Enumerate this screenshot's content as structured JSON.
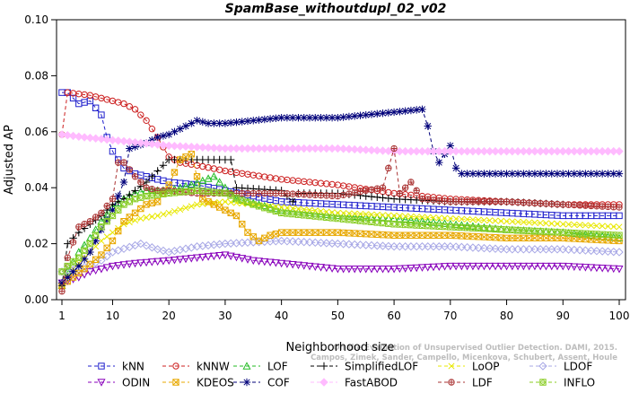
{
  "chart_data": {
    "type": "line",
    "title": "SpamBase_withoutdupl_02_v02",
    "xlabel": "Neighborhood size",
    "ylabel": "Adjusted AP",
    "xlim": [
      1,
      100
    ],
    "ylim": [
      0.0,
      0.1
    ],
    "x_ticks": [
      1,
      10,
      20,
      30,
      40,
      50,
      60,
      70,
      80,
      90,
      100
    ],
    "y_ticks": [
      0.0,
      0.02,
      0.04,
      0.06,
      0.08,
      0.1
    ],
    "y_tick_labels": [
      "0.00",
      "0.02",
      "0.04",
      "0.06",
      "0.08",
      "0.10"
    ],
    "grid": false,
    "legend_position": "bottom",
    "watermark": "Campos, Zimek, Sander, Campello, Micenkova, Schubert, Assent, Houle | On the Evaluation of Unsupervised Outlier Detection. DAMI, 2015.",
    "series": [
      {
        "name": "kNN",
        "color": "#1f1fcc",
        "marker": "square",
        "max_k": 100,
        "points": [
          [
            1,
            0.074
          ],
          [
            2,
            0.074
          ],
          [
            4,
            0.07
          ],
          [
            6,
            0.071
          ],
          [
            8,
            0.066
          ],
          [
            9,
            0.058
          ],
          [
            10,
            0.053
          ],
          [
            12,
            0.047
          ],
          [
            14,
            0.045
          ],
          [
            16,
            0.044
          ],
          [
            20,
            0.042
          ],
          [
            25,
            0.041
          ],
          [
            30,
            0.039
          ],
          [
            35,
            0.037
          ],
          [
            40,
            0.035
          ],
          [
            50,
            0.034
          ],
          [
            60,
            0.033
          ],
          [
            70,
            0.032
          ],
          [
            80,
            0.031
          ],
          [
            90,
            0.03
          ],
          [
            100,
            0.03
          ]
        ]
      },
      {
        "name": "kNNW",
        "color": "#cc1f1f",
        "marker": "circle",
        "max_k": 100,
        "points": [
          [
            1,
            0.059
          ],
          [
            2,
            0.074
          ],
          [
            4,
            0.0735
          ],
          [
            6,
            0.073
          ],
          [
            8,
            0.072
          ],
          [
            10,
            0.071
          ],
          [
            12,
            0.07
          ],
          [
            14,
            0.068
          ],
          [
            16,
            0.064
          ],
          [
            18,
            0.058
          ],
          [
            20,
            0.051
          ],
          [
            22,
            0.049
          ],
          [
            25,
            0.048
          ],
          [
            30,
            0.046
          ],
          [
            40,
            0.043
          ],
          [
            50,
            0.041
          ],
          [
            60,
            0.038
          ],
          [
            70,
            0.036
          ],
          [
            80,
            0.035
          ],
          [
            90,
            0.034
          ],
          [
            100,
            0.034
          ]
        ]
      },
      {
        "name": "LOF",
        "color": "#22bb22",
        "marker": "triangle-up",
        "max_k": 100,
        "points": [
          [
            1,
            0.005
          ],
          [
            2,
            0.01
          ],
          [
            4,
            0.017
          ],
          [
            6,
            0.022
          ],
          [
            8,
            0.028
          ],
          [
            10,
            0.033
          ],
          [
            12,
            0.036
          ],
          [
            14,
            0.038
          ],
          [
            16,
            0.039
          ],
          [
            20,
            0.039
          ],
          [
            24,
            0.041
          ],
          [
            28,
            0.044
          ],
          [
            30,
            0.04
          ],
          [
            32,
            0.036
          ],
          [
            36,
            0.034
          ],
          [
            40,
            0.032
          ],
          [
            50,
            0.03
          ],
          [
            60,
            0.029
          ],
          [
            70,
            0.027
          ],
          [
            80,
            0.025
          ],
          [
            90,
            0.024
          ],
          [
            100,
            0.022
          ]
        ]
      },
      {
        "name": "SimplifiedLOF",
        "color": "#000000",
        "marker": "plus",
        "max_k": 90,
        "points": [
          [
            1,
            0.005
          ],
          [
            2,
            0.02
          ],
          [
            4,
            0.024
          ],
          [
            6,
            0.027
          ],
          [
            8,
            0.03
          ],
          [
            10,
            0.034
          ],
          [
            12,
            0.036
          ],
          [
            14,
            0.039
          ],
          [
            16,
            0.042
          ],
          [
            18,
            0.046
          ],
          [
            20,
            0.05
          ],
          [
            25,
            0.05
          ],
          [
            31,
            0.05
          ],
          [
            32,
            0.04
          ],
          [
            40,
            0.039
          ],
          [
            42,
            0.035
          ],
          [
            43,
            0.038
          ],
          [
            50,
            0.038
          ],
          [
            60,
            0.036
          ],
          [
            70,
            0.035
          ],
          [
            80,
            0.035
          ],
          [
            90,
            0.034
          ]
        ]
      },
      {
        "name": "LoOP",
        "color": "#e8e800",
        "marker": "x",
        "max_k": 100,
        "points": [
          [
            1,
            0.006
          ],
          [
            2,
            0.009
          ],
          [
            4,
            0.013
          ],
          [
            6,
            0.017
          ],
          [
            8,
            0.021
          ],
          [
            10,
            0.024
          ],
          [
            12,
            0.027
          ],
          [
            15,
            0.029
          ],
          [
            18,
            0.03
          ],
          [
            20,
            0.031
          ],
          [
            25,
            0.034
          ],
          [
            30,
            0.035
          ],
          [
            35,
            0.034
          ],
          [
            40,
            0.033
          ],
          [
            50,
            0.031
          ],
          [
            60,
            0.03
          ],
          [
            70,
            0.029
          ],
          [
            80,
            0.028
          ],
          [
            90,
            0.027
          ],
          [
            100,
            0.026
          ]
        ]
      },
      {
        "name": "LDOF",
        "color": "#a8a8e6",
        "marker": "diamond",
        "max_k": 100,
        "points": [
          [
            1,
            0.01
          ],
          [
            4,
            0.011
          ],
          [
            8,
            0.014
          ],
          [
            10,
            0.017
          ],
          [
            15,
            0.02
          ],
          [
            18,
            0.018
          ],
          [
            20,
            0.017
          ],
          [
            25,
            0.019
          ],
          [
            30,
            0.02
          ],
          [
            40,
            0.021
          ],
          [
            50,
            0.02
          ],
          [
            60,
            0.019
          ],
          [
            70,
            0.019
          ],
          [
            80,
            0.018
          ],
          [
            90,
            0.018
          ],
          [
            100,
            0.017
          ]
        ]
      },
      {
        "name": "ODIN",
        "color": "#8800bb",
        "marker": "triangle-down",
        "max_k": 100,
        "points": [
          [
            1,
            0.006
          ],
          [
            4,
            0.008
          ],
          [
            6,
            0.01
          ],
          [
            10,
            0.012
          ],
          [
            14,
            0.013
          ],
          [
            20,
            0.014
          ],
          [
            25,
            0.015
          ],
          [
            30,
            0.016
          ],
          [
            35,
            0.014
          ],
          [
            40,
            0.013
          ],
          [
            50,
            0.011
          ],
          [
            60,
            0.011
          ],
          [
            70,
            0.012
          ],
          [
            80,
            0.012
          ],
          [
            90,
            0.012
          ],
          [
            100,
            0.011
          ]
        ]
      },
      {
        "name": "KDEOS",
        "color": "#e8a800",
        "marker": "square-x",
        "max_k": 100,
        "points": [
          [
            1,
            0.005
          ],
          [
            3,
            0.008
          ],
          [
            5,
            0.011
          ],
          [
            8,
            0.016
          ],
          [
            10,
            0.021
          ],
          [
            12,
            0.028
          ],
          [
            14,
            0.031
          ],
          [
            16,
            0.034
          ],
          [
            18,
            0.035
          ],
          [
            20,
            0.041
          ],
          [
            22,
            0.05
          ],
          [
            24,
            0.052
          ],
          [
            26,
            0.036
          ],
          [
            28,
            0.034
          ],
          [
            30,
            0.032
          ],
          [
            32,
            0.03
          ],
          [
            34,
            0.024
          ],
          [
            36,
            0.021
          ],
          [
            38,
            0.023
          ],
          [
            40,
            0.024
          ],
          [
            50,
            0.024
          ],
          [
            60,
            0.023
          ],
          [
            70,
            0.023
          ],
          [
            80,
            0.022
          ],
          [
            90,
            0.022
          ],
          [
            100,
            0.021
          ]
        ]
      },
      {
        "name": "COF",
        "color": "#00007a",
        "marker": "asterisk",
        "max_k": 100,
        "points": [
          [
            1,
            0.006
          ],
          [
            2,
            0.008
          ],
          [
            4,
            0.012
          ],
          [
            6,
            0.017
          ],
          [
            8,
            0.025
          ],
          [
            10,
            0.032
          ],
          [
            12,
            0.042
          ],
          [
            13,
            0.054
          ],
          [
            16,
            0.056
          ],
          [
            18,
            0.058
          ],
          [
            20,
            0.059
          ],
          [
            22,
            0.061
          ],
          [
            25,
            0.064
          ],
          [
            27,
            0.063
          ],
          [
            30,
            0.063
          ],
          [
            35,
            0.064
          ],
          [
            40,
            0.065
          ],
          [
            45,
            0.065
          ],
          [
            50,
            0.065
          ],
          [
            55,
            0.066
          ],
          [
            60,
            0.067
          ],
          [
            65,
            0.068
          ],
          [
            66,
            0.062
          ],
          [
            67,
            0.053
          ],
          [
            68,
            0.049
          ],
          [
            69,
            0.052
          ],
          [
            70,
            0.055
          ],
          [
            71,
            0.047
          ],
          [
            72,
            0.045
          ],
          [
            80,
            0.045
          ],
          [
            90,
            0.045
          ],
          [
            100,
            0.045
          ]
        ]
      },
      {
        "name": "FastABOD",
        "color": "#ffbbff",
        "marker": "diamond-filled",
        "max_k": 100,
        "points": [
          [
            1,
            0.059
          ],
          [
            5,
            0.058
          ],
          [
            10,
            0.057
          ],
          [
            15,
            0.056
          ],
          [
            20,
            0.055
          ],
          [
            30,
            0.054
          ],
          [
            40,
            0.054
          ],
          [
            50,
            0.054
          ],
          [
            60,
            0.053
          ],
          [
            70,
            0.053
          ],
          [
            80,
            0.053
          ],
          [
            90,
            0.053
          ],
          [
            100,
            0.053
          ]
        ]
      },
      {
        "name": "LDF",
        "color": "#aa3333",
        "marker": "circle-plus",
        "max_k": 100,
        "points": [
          [
            1,
            0.003
          ],
          [
            2,
            0.015
          ],
          [
            4,
            0.026
          ],
          [
            6,
            0.028
          ],
          [
            8,
            0.031
          ],
          [
            10,
            0.036
          ],
          [
            11,
            0.049
          ],
          [
            12,
            0.049
          ],
          [
            14,
            0.044
          ],
          [
            16,
            0.04
          ],
          [
            18,
            0.039
          ],
          [
            20,
            0.039
          ],
          [
            25,
            0.038
          ],
          [
            30,
            0.038
          ],
          [
            40,
            0.038
          ],
          [
            50,
            0.037
          ],
          [
            55,
            0.039
          ],
          [
            58,
            0.04
          ],
          [
            60,
            0.054
          ],
          [
            61,
            0.038
          ],
          [
            63,
            0.042
          ],
          [
            65,
            0.036
          ],
          [
            70,
            0.035
          ],
          [
            80,
            0.035
          ],
          [
            90,
            0.034
          ],
          [
            100,
            0.033
          ]
        ]
      },
      {
        "name": "INFLO",
        "color": "#88cc22",
        "marker": "square-circle",
        "max_k": 100,
        "points": [
          [
            1,
            0.01
          ],
          [
            2,
            0.012
          ],
          [
            4,
            0.015
          ],
          [
            6,
            0.02
          ],
          [
            8,
            0.026
          ],
          [
            10,
            0.03
          ],
          [
            12,
            0.034
          ],
          [
            14,
            0.036
          ],
          [
            16,
            0.037
          ],
          [
            20,
            0.038
          ],
          [
            25,
            0.039
          ],
          [
            30,
            0.038
          ],
          [
            35,
            0.034
          ],
          [
            40,
            0.031
          ],
          [
            50,
            0.029
          ],
          [
            60,
            0.027
          ],
          [
            70,
            0.026
          ],
          [
            80,
            0.025
          ],
          [
            90,
            0.024
          ],
          [
            100,
            0.023
          ]
        ]
      }
    ]
  }
}
